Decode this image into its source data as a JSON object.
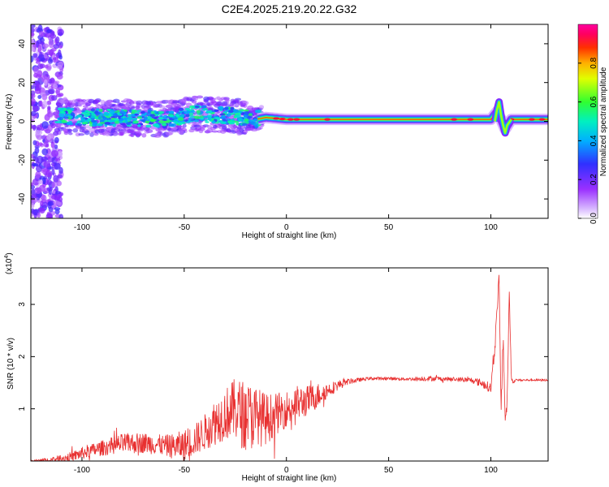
{
  "title": "C2E4.2025.219.20.22.G32",
  "colors": {
    "snr_line": "#e83030",
    "spectrogram_low": "#b060ff",
    "spectrogram_high": "#ff0030"
  },
  "colorbar": {
    "label": "Normalized spectral amplitude",
    "ticks": [
      "0.0",
      "0.2",
      "0.4",
      "0.6",
      "0.8"
    ],
    "tick_values": [
      0.0,
      0.2,
      0.4,
      0.6,
      0.8
    ],
    "range": [
      0,
      1
    ],
    "colormap": "rainbow (white/violet → blue → cyan → green → yellow → red → magenta)"
  },
  "chart_data": [
    {
      "type": "heatmap",
      "xlabel": "Height of straight line (km)",
      "ylabel": "Frequency (Hz)",
      "xlim": [
        -125,
        128
      ],
      "ylim": [
        -50,
        50
      ],
      "xticks": [
        -100,
        -50,
        0,
        50,
        100
      ],
      "xtick_labels": [
        "-100",
        "-50",
        "0",
        "50",
        "100"
      ],
      "yticks": [
        -40,
        -20,
        0,
        20,
        40
      ],
      "ytick_labels": [
        "-40",
        "-20",
        "0",
        "20",
        "40"
      ],
      "ridge": {
        "description": "Narrow high-amplitude band near 0–2 Hz",
        "x": [
          -112,
          -100,
          -80,
          -60,
          -45,
          -30,
          -20,
          -15,
          -10,
          0,
          20,
          50,
          80,
          100,
          103,
          105,
          107,
          110,
          128
        ],
        "y": [
          3,
          2,
          2,
          1,
          4,
          3,
          2,
          1,
          2,
          1,
          1,
          1,
          1,
          1,
          5,
          1,
          -4,
          1,
          1
        ]
      },
      "noisy_region": {
        "x": [
          -125,
          -110
        ],
        "y": [
          -50,
          50
        ]
      }
    },
    {
      "type": "line",
      "xlabel": "Height of straight line (km)",
      "ylabel": "SNR (10 * v/v)",
      "multiplier_label": "(x10",
      "multiplier_exp": "4",
      "xlim": [
        -125,
        128
      ],
      "ylim": [
        0,
        3.7
      ],
      "xticks": [
        -100,
        -50,
        0,
        50,
        100
      ],
      "xtick_labels": [
        "-100",
        "-50",
        "0",
        "50",
        "100"
      ],
      "yticks": [
        1,
        2,
        3
      ],
      "ytick_labels": [
        "1",
        "2",
        "3"
      ],
      "series": [
        {
          "x": [
            -125,
            -115,
            -105,
            -100,
            -90,
            -80,
            -70,
            -60,
            -55,
            -50,
            -45,
            -40,
            -35,
            -30,
            -25,
            -20,
            -15,
            -10,
            -5,
            0,
            5,
            10,
            15,
            20,
            25,
            30,
            35,
            40,
            50,
            60,
            70,
            80,
            90,
            95,
            100,
            102,
            104,
            105,
            106,
            107,
            108,
            109,
            110,
            111,
            112,
            115,
            120,
            128
          ],
          "y": [
            0.0,
            0.02,
            0.08,
            0.15,
            0.25,
            0.33,
            0.35,
            0.3,
            0.28,
            0.3,
            0.4,
            0.55,
            0.75,
            0.9,
            1.0,
            0.85,
            0.85,
            0.8,
            0.9,
            1.0,
            1.1,
            1.15,
            1.25,
            1.35,
            1.45,
            1.52,
            1.55,
            1.58,
            1.58,
            1.57,
            1.58,
            1.57,
            1.55,
            1.5,
            1.4,
            2.2,
            3.55,
            0.9,
            2.4,
            0.8,
            1.1,
            3.3,
            1.6,
            1.5,
            1.55,
            1.55,
            1.55,
            1.55
          ],
          "noise_amplitude": [
            0.02,
            0.05,
            0.1,
            0.12,
            0.15,
            0.2,
            0.2,
            0.2,
            0.25,
            0.3,
            0.3,
            0.35,
            0.45,
            0.5,
            0.6,
            0.7,
            0.6,
            0.5,
            0.4,
            0.35,
            0.35,
            0.3,
            0.25,
            0.15,
            0.1,
            0.06,
            0.04,
            0.03,
            0.03,
            0.03,
            0.05,
            0.04,
            0.05,
            0.08,
            0.1,
            0.15,
            0.1,
            0.15,
            0.2,
            0.15,
            0.1,
            0.1,
            0.05,
            0.03,
            0.02,
            0.02,
            0.02,
            0.02
          ]
        }
      ]
    }
  ]
}
